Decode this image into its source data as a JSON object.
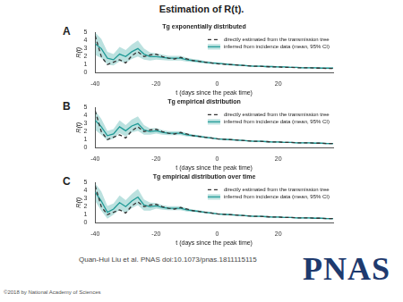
{
  "title": "Estimation of R(t).",
  "citation": "Quan-Hui Liu et al. PNAS doi:10.1073/pnas.1811115115",
  "logo": "PNAS",
  "copyright": "©2018 by National Academy of Sciences",
  "chart_data": [
    {
      "type": "line",
      "panel": "A",
      "title": "Tg exponentially distributed",
      "x_label": "t (days since the peak time)",
      "y_label": "R(t)",
      "x": [
        -40,
        -38,
        -36,
        -34,
        -32,
        -30,
        -28,
        -26,
        -24,
        -22,
        -20,
        -18,
        -16,
        -14,
        -12,
        -10,
        -8,
        -6,
        -4,
        -2,
        0,
        2,
        4,
        6,
        8,
        10,
        12,
        14,
        16,
        18,
        20,
        22,
        24,
        26,
        28,
        30,
        32,
        34,
        36,
        38
      ],
      "xlim": [
        -40,
        38
      ],
      "xticks": [
        -40,
        -20,
        0,
        20
      ],
      "ylim": [
        0,
        5
      ],
      "yticks": [
        0,
        1,
        2,
        3,
        4,
        5
      ],
      "grid": false,
      "legend": "upper right",
      "series": [
        {
          "name": "directly estimated from the transmission tree",
          "color": "#333333",
          "line_style": "dashed",
          "values": [
            4.6,
            2.0,
            1.0,
            1.3,
            1.6,
            1.2,
            2.1,
            2.6,
            2.0,
            2.2,
            2.3,
            2.0,
            1.8,
            1.7,
            1.9,
            1.7,
            1.5,
            1.4,
            1.3,
            1.2,
            1.1,
            1.05,
            1.0,
            0.95,
            0.9,
            0.85,
            0.8,
            0.8,
            0.75,
            0.7,
            0.7,
            0.65,
            0.65,
            0.6,
            0.6,
            0.6,
            0.55,
            0.55,
            0.5,
            0.5
          ]
        },
        {
          "name": "inferred from incidence data (mean, 95% CI)",
          "color": "#1f9a96",
          "line_style": "solid",
          "values": [
            3.6,
            3.0,
            1.8,
            1.6,
            2.3,
            2.0,
            2.6,
            3.0,
            2.3,
            2.0,
            2.0,
            1.9,
            1.8,
            1.8,
            1.8,
            1.6,
            1.5,
            1.4,
            1.3,
            1.2,
            1.15,
            1.1,
            1.0,
            0.95,
            0.9,
            0.85,
            0.8,
            0.8,
            0.75,
            0.75,
            0.7,
            0.7,
            0.65,
            0.65,
            0.6,
            0.6,
            0.6,
            0.55,
            0.55,
            0.55
          ],
          "lower": [
            2.2,
            1.8,
            1.0,
            0.9,
            1.4,
            1.2,
            1.7,
            2.0,
            1.6,
            1.5,
            1.6,
            1.55,
            1.5,
            1.5,
            1.5,
            1.35,
            1.3,
            1.2,
            1.15,
            1.05,
            1.03,
            1.0,
            0.9,
            0.85,
            0.8,
            0.77,
            0.72,
            0.72,
            0.67,
            0.67,
            0.62,
            0.62,
            0.57,
            0.57,
            0.52,
            0.52,
            0.52,
            0.47,
            0.47,
            0.47
          ],
          "upper": [
            5.0,
            4.2,
            2.6,
            2.3,
            3.2,
            2.8,
            3.5,
            4.0,
            3.0,
            2.5,
            2.4,
            2.25,
            2.1,
            2.1,
            2.1,
            1.85,
            1.7,
            1.6,
            1.45,
            1.35,
            1.27,
            1.2,
            1.1,
            1.05,
            1.0,
            0.93,
            0.88,
            0.88,
            0.83,
            0.83,
            0.78,
            0.78,
            0.73,
            0.73,
            0.68,
            0.68,
            0.68,
            0.63,
            0.63,
            0.63
          ]
        }
      ]
    },
    {
      "type": "line",
      "panel": "B",
      "title": "Tg empirical distribution",
      "x_label": "t (days since the peak time)",
      "y_label": "R(t)",
      "x": [
        -40,
        -38,
        -36,
        -34,
        -32,
        -30,
        -28,
        -26,
        -24,
        -22,
        -20,
        -18,
        -16,
        -14,
        -12,
        -10,
        -8,
        -6,
        -4,
        -2,
        0,
        2,
        4,
        6,
        8,
        10,
        12,
        14,
        16,
        18,
        20,
        22,
        24,
        26,
        28,
        30,
        32,
        34,
        36,
        38
      ],
      "xlim": [
        -40,
        38
      ],
      "xticks": [
        -40,
        -20,
        0,
        20
      ],
      "ylim": [
        0,
        5
      ],
      "yticks": [
        0,
        1,
        2,
        3,
        4,
        5
      ],
      "grid": false,
      "legend": "upper right",
      "series": [
        {
          "name": "directly estimated from the transmission tree",
          "color": "#333333",
          "line_style": "dashed",
          "values": [
            4.6,
            2.0,
            1.0,
            1.3,
            1.6,
            1.2,
            2.1,
            2.6,
            2.0,
            2.2,
            2.3,
            2.0,
            1.8,
            1.7,
            1.9,
            1.7,
            1.5,
            1.4,
            1.3,
            1.2,
            1.1,
            1.05,
            1.0,
            0.95,
            0.9,
            0.85,
            0.8,
            0.8,
            0.75,
            0.7,
            0.7,
            0.65,
            0.65,
            0.6,
            0.6,
            0.6,
            0.55,
            0.55,
            0.5,
            0.5
          ]
        },
        {
          "name": "inferred from incidence data (mean, 95% CI)",
          "color": "#1f9a96",
          "line_style": "solid",
          "values": [
            3.4,
            2.6,
            1.5,
            1.7,
            2.6,
            2.1,
            2.7,
            3.0,
            2.2,
            2.0,
            2.1,
            1.9,
            1.8,
            1.8,
            1.8,
            1.6,
            1.5,
            1.4,
            1.3,
            1.2,
            1.1,
            1.05,
            1.0,
            0.95,
            0.9,
            0.85,
            0.8,
            0.8,
            0.75,
            0.7,
            0.7,
            0.65,
            0.65,
            0.6,
            0.6,
            0.6,
            0.55,
            0.55,
            0.5,
            0.5
          ],
          "lower": [
            2.2,
            1.6,
            0.9,
            1.1,
            1.8,
            1.4,
            1.9,
            2.1,
            1.6,
            1.6,
            1.75,
            1.6,
            1.55,
            1.55,
            1.55,
            1.4,
            1.35,
            1.25,
            1.18,
            1.08,
            1.0,
            0.97,
            0.92,
            0.87,
            0.82,
            0.77,
            0.72,
            0.72,
            0.67,
            0.62,
            0.62,
            0.57,
            0.57,
            0.52,
            0.52,
            0.52,
            0.47,
            0.47,
            0.42,
            0.42
          ],
          "upper": [
            4.6,
            3.6,
            2.1,
            2.3,
            3.4,
            2.8,
            3.5,
            3.9,
            2.8,
            2.4,
            2.45,
            2.2,
            2.05,
            2.05,
            2.05,
            1.8,
            1.65,
            1.55,
            1.42,
            1.32,
            1.2,
            1.13,
            1.08,
            1.03,
            0.98,
            0.93,
            0.88,
            0.88,
            0.83,
            0.78,
            0.78,
            0.73,
            0.73,
            0.68,
            0.68,
            0.68,
            0.63,
            0.63,
            0.58,
            0.58
          ]
        }
      ]
    },
    {
      "type": "line",
      "panel": "C",
      "title": "Tg empirical distribution over time",
      "x_label": "t (days since the peak time)",
      "y_label": "R(t)",
      "x": [
        -40,
        -38,
        -36,
        -34,
        -32,
        -30,
        -28,
        -26,
        -24,
        -22,
        -20,
        -18,
        -16,
        -14,
        -12,
        -10,
        -8,
        -6,
        -4,
        -2,
        0,
        2,
        4,
        6,
        8,
        10,
        12,
        14,
        16,
        18,
        20,
        22,
        24,
        26,
        28,
        30,
        32,
        34,
        36,
        38
      ],
      "xlim": [
        -40,
        38
      ],
      "xticks": [
        -40,
        -20,
        0,
        20
      ],
      "ylim": [
        0,
        5
      ],
      "yticks": [
        0,
        1,
        2,
        3,
        4,
        5
      ],
      "grid": false,
      "legend": "upper right",
      "series": [
        {
          "name": "directly estimated from the transmission tree",
          "color": "#333333",
          "line_style": "dashed",
          "values": [
            4.6,
            2.0,
            1.0,
            1.3,
            1.6,
            1.2,
            2.1,
            2.6,
            2.0,
            2.2,
            2.3,
            2.0,
            1.8,
            1.7,
            1.9,
            1.7,
            1.5,
            1.4,
            1.3,
            1.2,
            1.1,
            1.05,
            1.0,
            0.95,
            0.9,
            0.85,
            0.8,
            0.8,
            0.75,
            0.7,
            0.7,
            0.65,
            0.65,
            0.6,
            0.6,
            0.6,
            0.55,
            0.55,
            0.5,
            0.5
          ]
        },
        {
          "name": "inferred from incidence data (mean, 95% CI)",
          "color": "#1f9a96",
          "line_style": "solid",
          "values": [
            3.8,
            2.7,
            1.3,
            1.7,
            2.5,
            2.0,
            2.7,
            3.2,
            2.2,
            2.0,
            2.1,
            1.9,
            1.8,
            1.8,
            1.8,
            1.6,
            1.5,
            1.4,
            1.3,
            1.2,
            1.1,
            1.05,
            1.0,
            0.95,
            0.9,
            0.85,
            0.8,
            0.8,
            0.75,
            0.7,
            0.7,
            0.65,
            0.65,
            0.6,
            0.6,
            0.6,
            0.55,
            0.55,
            0.5,
            0.5
          ],
          "lower": [
            2.7,
            1.5,
            0.5,
            1.0,
            1.6,
            1.2,
            1.8,
            2.2,
            1.5,
            1.5,
            1.75,
            1.6,
            1.55,
            1.55,
            1.55,
            1.4,
            1.35,
            1.25,
            1.18,
            1.08,
            1.0,
            0.97,
            0.92,
            0.87,
            0.82,
            0.77,
            0.72,
            0.72,
            0.67,
            0.62,
            0.62,
            0.57,
            0.57,
            0.52,
            0.52,
            0.52,
            0.47,
            0.47,
            0.42,
            0.42
          ],
          "upper": [
            4.9,
            3.9,
            2.1,
            2.4,
            3.4,
            2.8,
            3.6,
            4.2,
            2.9,
            2.5,
            2.45,
            2.2,
            2.05,
            2.05,
            2.05,
            1.8,
            1.65,
            1.55,
            1.42,
            1.32,
            1.2,
            1.13,
            1.08,
            1.03,
            0.98,
            0.93,
            0.88,
            0.88,
            0.83,
            0.78,
            0.78,
            0.73,
            0.73,
            0.68,
            0.68,
            0.68,
            0.63,
            0.63,
            0.58,
            0.58
          ]
        }
      ]
    }
  ]
}
